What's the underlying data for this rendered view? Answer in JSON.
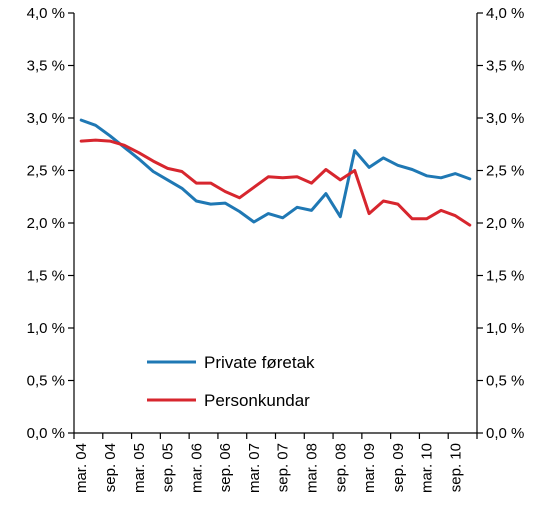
{
  "chart_data": {
    "type": "line",
    "title": "",
    "xlabel": "",
    "ylabel": "",
    "ylim": [
      0,
      4.0
    ],
    "y_ticks": [
      "0,0 %",
      "0,5 %",
      "1,0 %",
      "1,5 %",
      "2,0 %",
      "2,5 %",
      "3,0 %",
      "3,5 %",
      "4,0 %"
    ],
    "y_tick_values": [
      0,
      0.5,
      1.0,
      1.5,
      2.0,
      2.5,
      3.0,
      3.5,
      4.0
    ],
    "right_axis_duplicate": true,
    "grid": false,
    "legend_position": "lower-center",
    "x": [
      "mar. 04",
      "jun. 04",
      "sep. 04",
      "des. 04",
      "mar. 05",
      "jun. 05",
      "sep. 05",
      "des. 05",
      "mar. 06",
      "jun. 06",
      "sep. 06",
      "des. 06",
      "mar. 07",
      "jun. 07",
      "sep. 07",
      "des. 07",
      "mar. 08",
      "jun. 08",
      "sep. 08",
      "des. 08",
      "mar. 09",
      "jun. 09",
      "sep. 09",
      "des. 09",
      "mar. 10",
      "jun. 10",
      "sep. 10",
      "des. 10"
    ],
    "x_tick_labels": [
      "mar. 04",
      "sep. 04",
      "mar. 05",
      "sep. 05",
      "mar. 06",
      "sep. 06",
      "mar. 07",
      "sep. 07",
      "mar. 08",
      "sep. 08",
      "mar. 09",
      "sep. 09",
      "mar. 10",
      "sep. 10"
    ],
    "series": [
      {
        "name": "Private føretak",
        "color": "#1f78b4",
        "values": [
          2.98,
          2.93,
          2.83,
          2.72,
          2.61,
          2.49,
          2.41,
          2.33,
          2.21,
          2.18,
          2.19,
          2.11,
          2.01,
          2.09,
          2.05,
          2.15,
          2.12,
          2.28,
          2.06,
          2.69,
          2.53,
          2.62,
          2.55,
          2.51,
          2.45,
          2.43,
          2.47,
          2.42
        ]
      },
      {
        "name": "Personkundar",
        "color": "#d7262e",
        "values": [
          2.78,
          2.79,
          2.78,
          2.74,
          2.67,
          2.59,
          2.52,
          2.49,
          2.38,
          2.38,
          2.3,
          2.24,
          2.34,
          2.44,
          2.43,
          2.44,
          2.38,
          2.51,
          2.41,
          2.5,
          2.09,
          2.21,
          2.18,
          2.04,
          2.04,
          2.12,
          2.07,
          1.98
        ]
      }
    ]
  }
}
